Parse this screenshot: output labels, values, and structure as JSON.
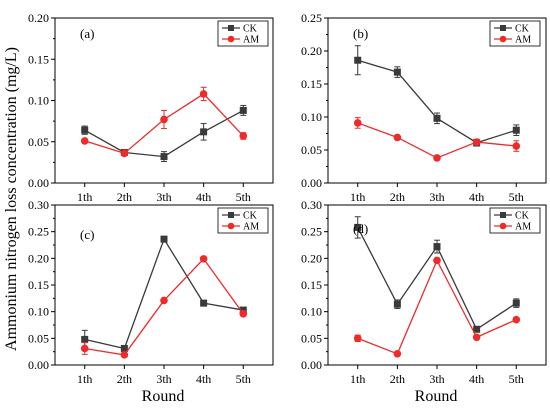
{
  "figure": {
    "ylabel": "Ammonium nitrogen loss concentration (mg/L)",
    "xlabel_left": "Round",
    "xlabel_right": "Round"
  },
  "colors": {
    "CK": "#3a3a3a",
    "AM": "#ee2b2b"
  },
  "chart_data": [
    {
      "type": "line",
      "panel": "(a)",
      "categories": [
        "1th",
        "2th",
        "3th",
        "4th",
        "5th"
      ],
      "ylim": [
        0,
        0.2
      ],
      "yticks": [
        "0.00",
        "0.05",
        "0.10",
        "0.15",
        "0.20"
      ],
      "yticks_values": [
        0,
        0.05,
        0.1,
        0.15,
        0.2
      ],
      "legend": "top-right",
      "series": [
        {
          "name": "CK",
          "values": [
            0.064,
            0.037,
            0.032,
            0.062,
            0.088
          ],
          "errors": [
            0.005,
            0.003,
            0.006,
            0.01,
            0.006
          ]
        },
        {
          "name": "AM",
          "values": [
            0.051,
            0.036,
            0.077,
            0.108,
            0.057
          ],
          "errors": [
            0.002,
            0.002,
            0.011,
            0.008,
            0.004
          ]
        }
      ]
    },
    {
      "type": "line",
      "panel": "(b)",
      "categories": [
        "1th",
        "2th",
        "3th",
        "4th",
        "5th"
      ],
      "ylim": [
        0,
        0.25
      ],
      "yticks": [
        "0.00",
        "0.05",
        "0.10",
        "0.15",
        "0.20",
        "0.25"
      ],
      "yticks_values": [
        0,
        0.05,
        0.1,
        0.15,
        0.2,
        0.25
      ],
      "legend": "top-right",
      "series": [
        {
          "name": "CK",
          "values": [
            0.186,
            0.168,
            0.098,
            0.061,
            0.08
          ],
          "errors": [
            0.022,
            0.008,
            0.008,
            0.005,
            0.008
          ]
        },
        {
          "name": "AM",
          "values": [
            0.091,
            0.069,
            0.038,
            0.062,
            0.056
          ],
          "errors": [
            0.008,
            0.002,
            0.002,
            0.004,
            0.008
          ]
        }
      ]
    },
    {
      "type": "line",
      "panel": "(c)",
      "categories": [
        "1th",
        "2th",
        "3th",
        "4th",
        "5th"
      ],
      "ylim": [
        0,
        0.3
      ],
      "yticks": [
        "0.00",
        "0.05",
        "0.10",
        "0.15",
        "0.20",
        "0.25",
        "0.30"
      ],
      "yticks_values": [
        0,
        0.05,
        0.1,
        0.15,
        0.2,
        0.25,
        0.3
      ],
      "legend": "top-right",
      "series": [
        {
          "name": "CK",
          "values": [
            0.048,
            0.031,
            0.236,
            0.116,
            0.103
          ],
          "errors": [
            0.017,
            0.002,
            0.004,
            0.002,
            0.004
          ]
        },
        {
          "name": "AM",
          "values": [
            0.031,
            0.019,
            0.121,
            0.199,
            0.096
          ],
          "errors": [
            0.011,
            0.002,
            0.002,
            0.002,
            0.004
          ]
        }
      ]
    },
    {
      "type": "line",
      "panel": "(d)",
      "categories": [
        "1th",
        "2th",
        "3th",
        "4th",
        "5th"
      ],
      "ylim": [
        0,
        0.3
      ],
      "yticks": [
        "0.00",
        "0.05",
        "0.10",
        "0.15",
        "0.20",
        "0.25",
        "0.30"
      ],
      "yticks_values": [
        0,
        0.05,
        0.1,
        0.15,
        0.2,
        0.25,
        0.3
      ],
      "legend": "top-right",
      "series": [
        {
          "name": "CK",
          "values": [
            0.258,
            0.114,
            0.222,
            0.067,
            0.116
          ],
          "errors": [
            0.02,
            0.008,
            0.012,
            0.003,
            0.008
          ]
        },
        {
          "name": "AM",
          "values": [
            0.05,
            0.021,
            0.196,
            0.052,
            0.085
          ],
          "errors": [
            0.006,
            0.002,
            0.004,
            0.002,
            0.004
          ]
        }
      ]
    }
  ]
}
